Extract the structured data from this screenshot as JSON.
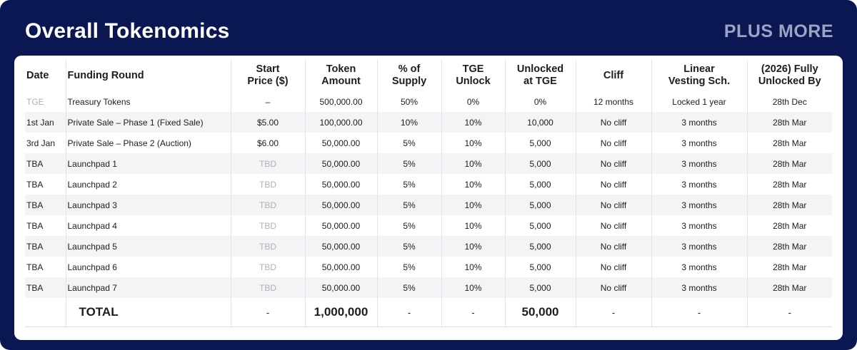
{
  "header": {
    "title": "Overall Tokenomics",
    "brand": "PLUS MORE"
  },
  "table": {
    "columns": [
      "Date",
      "Funding Round",
      "Start\nPrice ($)",
      "Token\nAmount",
      "% of\nSupply",
      "TGE\nUnlock",
      "Unlocked\nat TGE",
      "Cliff",
      "Linear\nVesting Sch.",
      "(2026) Fully\nUnlocked By"
    ],
    "rows": [
      [
        "TGE",
        "Treasury Tokens",
        "–",
        "500,000.00",
        "50%",
        "0%",
        "0%",
        "12 months",
        "Locked 1 year",
        "28th Dec"
      ],
      [
        "1st Jan",
        "Private Sale – Phase 1 (Fixed Sale)",
        "$5.00",
        "100,000.00",
        "10%",
        "10%",
        "10,000",
        "No cliff",
        "3 months",
        "28th Mar"
      ],
      [
        "3rd Jan",
        "Private Sale – Phase 2 (Auction)",
        "$6.00",
        "50,000.00",
        "5%",
        "10%",
        "5,000",
        "No cliff",
        "3 months",
        "28th Mar"
      ],
      [
        "TBA",
        "Launchpad 1",
        "TBD",
        "50,000.00",
        "5%",
        "10%",
        "5,000",
        "No cliff",
        "3 months",
        "28th Mar"
      ],
      [
        "TBA",
        "Launchpad 2",
        "TBD",
        "50,000.00",
        "5%",
        "10%",
        "5,000",
        "No cliff",
        "3 months",
        "28th Mar"
      ],
      [
        "TBA",
        "Launchpad 3",
        "TBD",
        "50,000.00",
        "5%",
        "10%",
        "5,000",
        "No cliff",
        "3 months",
        "28th Mar"
      ],
      [
        "TBA",
        "Launchpad 4",
        "TBD",
        "50,000.00",
        "5%",
        "10%",
        "5,000",
        "No cliff",
        "3 months",
        "28th Mar"
      ],
      [
        "TBA",
        "Launchpad 5",
        "TBD",
        "50,000.00",
        "5%",
        "10%",
        "5,000",
        "No cliff",
        "3 months",
        "28th Mar"
      ],
      [
        "TBA",
        "Launchpad 6",
        "TBD",
        "50,000.00",
        "5%",
        "10%",
        "5,000",
        "No cliff",
        "3 months",
        "28th Mar"
      ],
      [
        "TBA",
        "Launchpad 7",
        "TBD",
        "50,000.00",
        "5%",
        "10%",
        "5,000",
        "No cliff",
        "3 months",
        "28th Mar"
      ]
    ],
    "total": [
      "TOTAL",
      "-",
      "1,000,000",
      "-",
      "-",
      "50,000",
      "-",
      "-",
      "-"
    ]
  }
}
